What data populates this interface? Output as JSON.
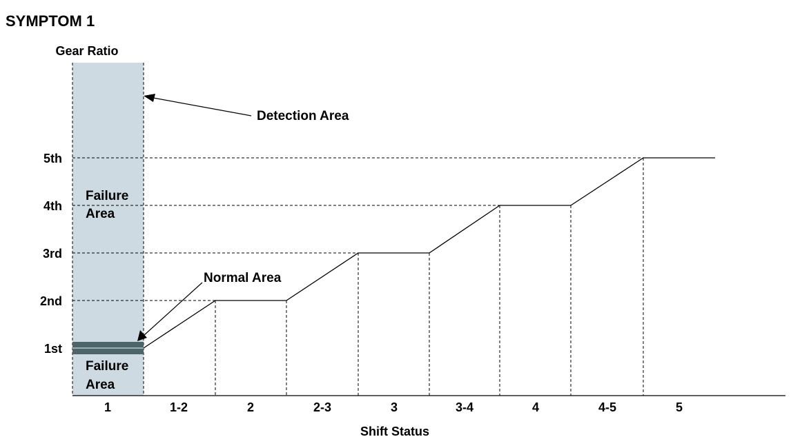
{
  "title": "SYMPTOM 1",
  "y_axis_label": "Gear Ratio",
  "x_axis_label": "Shift Status",
  "gear_levels": [
    "1st",
    "2nd",
    "3rd",
    "4th",
    "5th"
  ],
  "shift_status": [
    "1",
    "1-2",
    "2",
    "2-3",
    "3",
    "3-4",
    "4",
    "4-5",
    "5"
  ],
  "annotations": {
    "detection_area": "Detection Area",
    "normal_area": "Normal Area",
    "failure_area_upper": [
      "Failure",
      "Area"
    ],
    "failure_area_lower": [
      "Failure",
      "Area"
    ]
  },
  "colors": {
    "detection_fill": "#cddae1",
    "normal_band": "#4d6469",
    "line": "#000000"
  }
}
